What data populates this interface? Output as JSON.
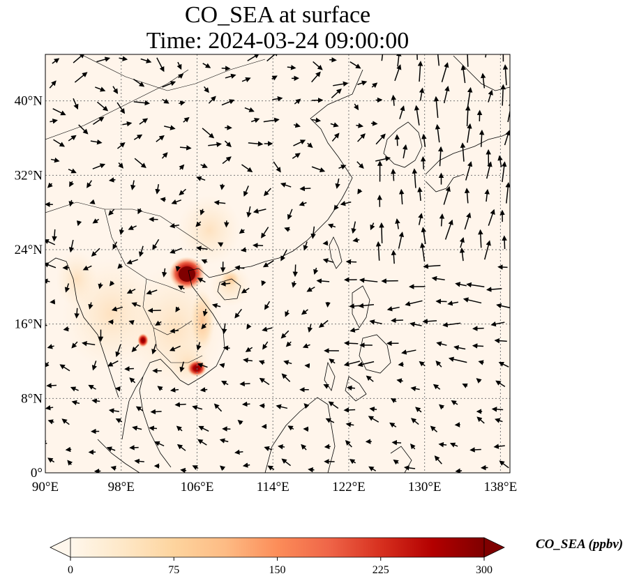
{
  "title": {
    "line1": "CO_SEA at surface",
    "line2": "Time: 2024-03-24 09:00:00"
  },
  "map": {
    "projection": "PlateCarree",
    "lon_range": [
      90,
      139
    ],
    "lat_range": [
      0,
      45
    ],
    "gridlines": "dotted",
    "x_ticks": [
      {
        "value": 90,
        "label": "90°E"
      },
      {
        "value": 98,
        "label": "98°E"
      },
      {
        "value": 106,
        "label": "106°E"
      },
      {
        "value": 114,
        "label": "114°E"
      },
      {
        "value": 122,
        "label": "122°E"
      },
      {
        "value": 130,
        "label": "130°E"
      },
      {
        "value": 138,
        "label": "138°E"
      }
    ],
    "y_ticks": [
      {
        "value": 0,
        "label": "0°"
      },
      {
        "value": 8,
        "label": "8°N"
      },
      {
        "value": 16,
        "label": "16°N"
      },
      {
        "value": 24,
        "label": "24°N"
      },
      {
        "value": 32,
        "label": "32°N"
      },
      {
        "value": 40,
        "label": "40°N"
      }
    ],
    "background_color": "#fff5eb",
    "coast_color": "#000000",
    "arrow_color": "#000000"
  },
  "colorbar": {
    "label": "CO_SEA (ppbv)",
    "colormap": "OrRd",
    "min": 0,
    "max": 300,
    "extend": "both",
    "ticks": [
      "0",
      "75",
      "150",
      "225",
      "300"
    ],
    "stops": [
      "#fff7ec",
      "#fee8c8",
      "#fdd49e",
      "#fdbb84",
      "#fc8d59",
      "#ef6548",
      "#d7301f",
      "#b30000",
      "#7f0000"
    ]
  }
}
